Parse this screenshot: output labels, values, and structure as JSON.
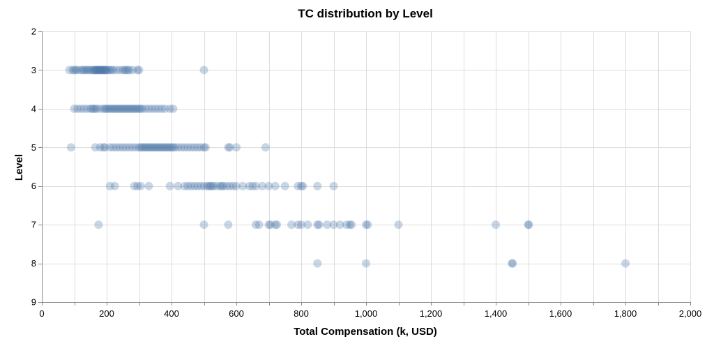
{
  "chart_data": {
    "type": "scatter",
    "title": "TC distribution by Level",
    "xlabel": "Total Compensation (k, USD)",
    "ylabel": "Level",
    "xlim": [
      0,
      2000
    ],
    "ylim": [
      2,
      9
    ],
    "y_reversed": true,
    "grid": true,
    "x_ticks": [
      0,
      200,
      400,
      600,
      800,
      1000,
      1200,
      1400,
      1600,
      1800,
      2000
    ],
    "x_tick_labels": [
      "0",
      "200",
      "400",
      "600",
      "800",
      "1,000",
      "1,200",
      "1,400",
      "1,600",
      "1,800",
      "2,000"
    ],
    "y_ticks": [
      2,
      3,
      4,
      5,
      6,
      7,
      8,
      9
    ],
    "y_tick_labels": [
      "2",
      "3",
      "4",
      "5",
      "6",
      "7",
      "8",
      "9"
    ],
    "point_color": "#4c78a8",
    "point_opacity": 0.3,
    "series": [
      {
        "name": "Level 3",
        "level": 3,
        "values": [
          85,
          95,
          100,
          105,
          110,
          120,
          125,
          130,
          135,
          140,
          145,
          150,
          155,
          160,
          162,
          165,
          168,
          170,
          172,
          175,
          178,
          180,
          182,
          185,
          188,
          190,
          192,
          195,
          198,
          200,
          205,
          210,
          215,
          220,
          230,
          240,
          250,
          255,
          260,
          265,
          270,
          280,
          295,
          300,
          500
        ]
      },
      {
        "name": "Level 4",
        "level": 4,
        "values": [
          100,
          110,
          120,
          130,
          140,
          150,
          155,
          160,
          165,
          170,
          180,
          190,
          195,
          200,
          205,
          210,
          215,
          220,
          225,
          230,
          235,
          240,
          245,
          250,
          255,
          260,
          265,
          270,
          275,
          280,
          285,
          290,
          295,
          300,
          305,
          310,
          320,
          330,
          340,
          350,
          360,
          370,
          380,
          395,
          405
        ]
      },
      {
        "name": "Level 5",
        "level": 5,
        "values": [
          90,
          165,
          180,
          190,
          195,
          210,
          220,
          230,
          240,
          250,
          260,
          270,
          280,
          290,
          300,
          305,
          310,
          315,
          320,
          325,
          330,
          335,
          340,
          345,
          350,
          355,
          360,
          365,
          370,
          375,
          380,
          385,
          390,
          395,
          400,
          405,
          410,
          420,
          430,
          440,
          450,
          460,
          470,
          480,
          490,
          500,
          505,
          575,
          580,
          600,
          690
        ]
      },
      {
        "name": "Level 6",
        "level": 6,
        "values": [
          210,
          225,
          285,
          295,
          305,
          330,
          395,
          420,
          440,
          450,
          460,
          470,
          480,
          490,
          500,
          510,
          515,
          520,
          525,
          530,
          540,
          550,
          555,
          560,
          570,
          580,
          590,
          600,
          620,
          640,
          650,
          660,
          680,
          700,
          720,
          750,
          790,
          800,
          805,
          850,
          900
        ]
      },
      {
        "name": "Level 7",
        "level": 7,
        "values": [
          175,
          500,
          575,
          660,
          670,
          700,
          705,
          720,
          725,
          770,
          790,
          800,
          820,
          850,
          855,
          880,
          900,
          920,
          940,
          950,
          955,
          1000,
          1005,
          1100,
          1400,
          1500,
          1502
        ]
      },
      {
        "name": "Level 8",
        "level": 8,
        "values": [
          850,
          1000,
          1450,
          1452,
          1800
        ]
      }
    ]
  }
}
